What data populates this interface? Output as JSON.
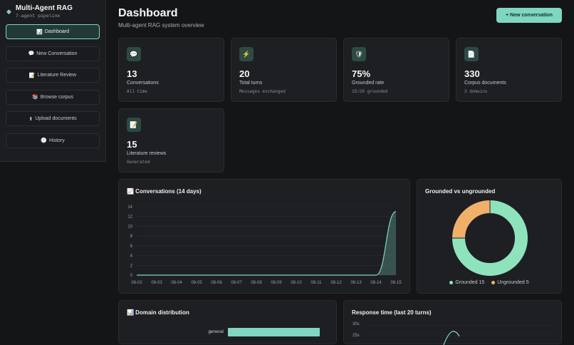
{
  "sidebar": {
    "app_title": "Multi-Agent RAG",
    "app_subtitle": "7-agent pipeline",
    "items": [
      {
        "icon": "📊",
        "label": "Dashboard"
      },
      {
        "icon": "💬",
        "label": "New Conversation"
      },
      {
        "icon": "📝",
        "label": "Literature Review"
      },
      {
        "icon": "📚",
        "label": "Browse corpus"
      },
      {
        "icon": "⬆",
        "label": "Upload documents"
      },
      {
        "icon": "🕐",
        "label": "History"
      }
    ]
  },
  "header": {
    "title": "Dashboard",
    "subtitle": "Multi-agent RAG system overview",
    "new_button": "+ New conversation"
  },
  "stats": [
    {
      "icon": "💬",
      "value": "13",
      "label": "Conversations",
      "sub": "All time"
    },
    {
      "icon": "⚡",
      "value": "20",
      "label": "Total turns",
      "sub": "Messages exchanged"
    },
    {
      "icon": "🛡",
      "value": "75%",
      "label": "Grounded rate",
      "sub": "15/20 grounded"
    },
    {
      "icon": "📄",
      "value": "330",
      "label": "Corpus documents",
      "sub": "3 domains"
    },
    {
      "icon": "📝",
      "value": "15",
      "label": "Literature reviews",
      "sub": "Generated"
    }
  ],
  "colors": {
    "accent": "#7fd6c2",
    "warning": "#f0b06a"
  },
  "chart_data": [
    {
      "type": "area",
      "title": "📈 Conversations (14 days)",
      "x": [
        "08-02",
        "08-03",
        "08-04",
        "08-05",
        "08-06",
        "08-07",
        "08-08",
        "08-09",
        "08-10",
        "08-11",
        "08-12",
        "08-13",
        "08-14",
        "08-15"
      ],
      "values": [
        0,
        0,
        0,
        0,
        0,
        0,
        0,
        0,
        0,
        0,
        0,
        0,
        0,
        13
      ],
      "ylim": [
        0,
        14
      ],
      "yticks": [
        "0",
        "2",
        "4",
        "6",
        "8",
        "10",
        "12",
        "14"
      ],
      "grid": true
    },
    {
      "type": "pie",
      "title": "Grounded vs ungrounded",
      "categories": [
        "Grounded",
        "Ungrounded"
      ],
      "values": [
        15,
        5
      ],
      "legend_labels": [
        "Grounded 15",
        "Ungrounded 5"
      ],
      "legend": "bottom"
    },
    {
      "type": "bar",
      "title": "📊 Domain distribution",
      "categories": [
        "general"
      ]
    },
    {
      "type": "line",
      "title": "Response time (last 20 turns)",
      "yticks": [
        "30s",
        "25s"
      ]
    }
  ]
}
